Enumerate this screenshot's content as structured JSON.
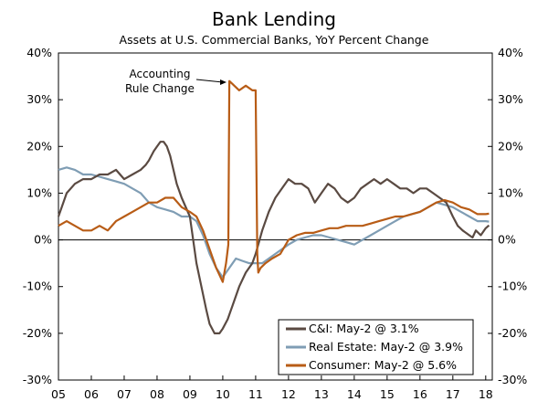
{
  "chart_data": {
    "type": "line",
    "title": "Bank Lending",
    "subtitle": "Assets at U.S. Commercial Banks, YoY Percent Change",
    "xlabel": "",
    "ylabel": "",
    "xlim": [
      2005.0,
      2018.2
    ],
    "ylim": [
      -30,
      40
    ],
    "y_ticks": [
      40,
      30,
      20,
      10,
      0,
      -10,
      -20,
      -30
    ],
    "y_tick_labels": [
      "40%",
      "30%",
      "20%",
      "10%",
      "0%",
      "-10%",
      "-20%",
      "-30%"
    ],
    "x_ticks": [
      2005,
      2006,
      2007,
      2008,
      2009,
      2010,
      2011,
      2012,
      2013,
      2014,
      2015,
      2016,
      2017,
      2018
    ],
    "x_tick_labels": [
      "05",
      "06",
      "07",
      "08",
      "09",
      "10",
      "11",
      "12",
      "13",
      "14",
      "15",
      "16",
      "17",
      "18"
    ],
    "annotation": {
      "lines": [
        "Accounting",
        "Rule Change"
      ],
      "x": 2010.2,
      "y": 34
    },
    "legend_position": "bottom-right",
    "series": [
      {
        "name": "C&I",
        "legend_label": "C&I: May-2 @ 3.1%",
        "color": "#5a4a42",
        "x": [
          2005.0,
          2005.1,
          2005.25,
          2005.5,
          2005.75,
          2006.0,
          2006.25,
          2006.5,
          2006.75,
          2007.0,
          2007.25,
          2007.5,
          2007.65,
          2007.75,
          2007.9,
          2008.0,
          2008.1,
          2008.2,
          2008.3,
          2008.4,
          2008.5,
          2008.6,
          2008.75,
          2009.0,
          2009.1,
          2009.2,
          2009.35,
          2009.5,
          2009.6,
          2009.75,
          2009.9,
          2010.0,
          2010.15,
          2010.3,
          2010.5,
          2010.7,
          2010.9,
          2011.0,
          2011.2,
          2011.4,
          2011.6,
          2011.8,
          2012.0,
          2012.2,
          2012.4,
          2012.6,
          2012.8,
          2013.0,
          2013.2,
          2013.4,
          2013.6,
          2013.8,
          2014.0,
          2014.2,
          2014.4,
          2014.6,
          2014.8,
          2015.0,
          2015.2,
          2015.4,
          2015.6,
          2015.8,
          2016.0,
          2016.2,
          2016.4,
          2016.6,
          2016.8,
          2017.0,
          2017.15,
          2017.3,
          2017.5,
          2017.6,
          2017.7,
          2017.85,
          2018.0,
          2018.1
        ],
        "y": [
          5,
          7,
          10,
          12,
          13,
          13,
          14,
          14,
          15,
          13,
          14,
          15,
          16,
          17,
          19,
          20,
          21,
          21,
          20,
          18,
          15,
          12,
          9,
          5,
          0,
          -5,
          -10,
          -15,
          -18,
          -20,
          -20,
          -19,
          -17,
          -14,
          -10,
          -7,
          -5,
          -3,
          2,
          6,
          9,
          11,
          13,
          12,
          12,
          11,
          8,
          10,
          12,
          11,
          9,
          8,
          9,
          11,
          12,
          13,
          12,
          13,
          12,
          11,
          11,
          10,
          11,
          11,
          10,
          9,
          8,
          5,
          3,
          2,
          1,
          0.5,
          2,
          1,
          2.5,
          3.1
        ]
      },
      {
        "name": "Real Estate",
        "legend_label": "Real Estate: May-2 @ 3.9%",
        "color": "#7f9db4",
        "x": [
          2005.0,
          2005.25,
          2005.5,
          2005.75,
          2006.0,
          2006.25,
          2006.5,
          2006.75,
          2007.0,
          2007.25,
          2007.5,
          2007.75,
          2008.0,
          2008.25,
          2008.5,
          2008.75,
          2009.0,
          2009.2,
          2009.4,
          2009.6,
          2009.8,
          2010.0,
          2010.2,
          2010.4,
          2010.6,
          2010.8,
          2011.0,
          2011.2,
          2011.4,
          2011.6,
          2011.8,
          2012.0,
          2012.25,
          2012.5,
          2012.75,
          2013.0,
          2013.25,
          2013.5,
          2013.75,
          2014.0,
          2014.25,
          2014.5,
          2014.75,
          2015.0,
          2015.25,
          2015.5,
          2015.75,
          2016.0,
          2016.25,
          2016.5,
          2016.75,
          2017.0,
          2017.25,
          2017.5,
          2017.75,
          2018.0,
          2018.1
        ],
        "y": [
          15,
          15.5,
          15,
          14,
          14,
          13.5,
          13,
          12.5,
          12,
          11,
          10,
          8,
          7,
          6.5,
          6,
          5,
          5,
          4,
          1,
          -3,
          -6,
          -8,
          -6,
          -4,
          -4.5,
          -5,
          -5,
          -5,
          -4,
          -3,
          -2,
          -1,
          0,
          0.5,
          1,
          1,
          0.5,
          0,
          -0.5,
          -1,
          0,
          1,
          2,
          3,
          4,
          5,
          5.5,
          6,
          7,
          8,
          7.5,
          7,
          6,
          5,
          4,
          4,
          3.9
        ]
      },
      {
        "name": "Consumer",
        "legend_label": "Consumer: May-2 @ 5.6%",
        "color": "#b85c16",
        "x": [
          2005.0,
          2005.25,
          2005.5,
          2005.75,
          2006.0,
          2006.25,
          2006.5,
          2006.75,
          2007.0,
          2007.25,
          2007.5,
          2007.75,
          2008.0,
          2008.25,
          2008.5,
          2008.75,
          2009.0,
          2009.2,
          2009.4,
          2009.6,
          2009.8,
          2010.0,
          2010.1,
          2010.17,
          2010.2,
          2010.35,
          2010.5,
          2010.7,
          2010.9,
          2011.0,
          2011.05,
          2011.08,
          2011.15,
          2011.3,
          2011.5,
          2011.75,
          2012.0,
          2012.25,
          2012.5,
          2012.75,
          2013.0,
          2013.25,
          2013.5,
          2013.75,
          2014.0,
          2014.25,
          2014.5,
          2014.75,
          2015.0,
          2015.25,
          2015.5,
          2015.75,
          2016.0,
          2016.25,
          2016.5,
          2016.75,
          2017.0,
          2017.25,
          2017.5,
          2017.75,
          2018.0,
          2018.1
        ],
        "y": [
          3,
          4,
          3,
          2,
          2,
          3,
          2,
          4,
          5,
          6,
          7,
          8,
          8,
          9,
          9,
          7,
          6,
          5,
          2,
          -2,
          -6,
          -9,
          -5,
          -1,
          34,
          33,
          32,
          33,
          32,
          32,
          -3,
          -7,
          -6,
          -5,
          -4,
          -3,
          0,
          1,
          1.5,
          1.5,
          2,
          2.5,
          2.5,
          3,
          3,
          3,
          3.5,
          4,
          4.5,
          5,
          5,
          5.5,
          6,
          7,
          8,
          8.5,
          8,
          7,
          6.5,
          5.5,
          5.5,
          5.6
        ]
      }
    ]
  }
}
